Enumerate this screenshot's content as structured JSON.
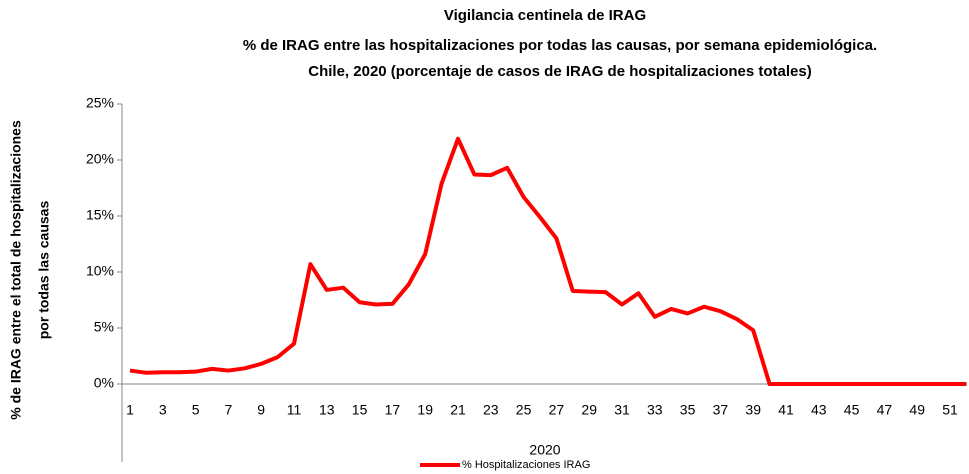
{
  "chart_data": {
    "type": "line",
    "title": "Vigilancia centinela de IRAG",
    "subtitle": [
      "% de IRAG entre las hospitalizaciones por todas las causas, por semana epidemiológica.",
      "Chile, 2020 (porcentaje de casos de IRAG de hospitalizaciones totales)"
    ],
    "ylabel": [
      "% de IRAG entre el total de hospitalizaciones",
      "por todas las causas"
    ],
    "xlabel": "2020",
    "categories": [
      "1",
      null,
      "3",
      null,
      "5",
      null,
      "7",
      null,
      "9",
      null,
      "11",
      null,
      "13",
      null,
      "15",
      null,
      "17",
      null,
      "19",
      null,
      "21",
      null,
      "23",
      null,
      "25",
      null,
      "27",
      null,
      "29",
      null,
      "31",
      null,
      "33",
      null,
      "35",
      null,
      "37",
      null,
      "39",
      null,
      "41",
      null,
      "43",
      null,
      "45",
      null,
      "47",
      null,
      "49",
      null,
      "51",
      null
    ],
    "series": [
      {
        "name": "% Hospitalizaciones IRAG",
        "color": "#ff0000",
        "values": [
          1.2,
          1.0,
          1.05,
          1.05,
          1.1,
          1.35,
          1.2,
          1.4,
          1.8,
          2.4,
          3.6,
          10.7,
          8.4,
          8.6,
          7.3,
          7.1,
          7.15,
          8.9,
          11.6,
          17.9,
          21.9,
          18.7,
          18.65,
          19.3,
          16.7,
          14.9,
          13.0,
          8.3,
          8.25,
          8.2,
          7.1,
          8.1,
          6.0,
          6.7,
          6.3,
          6.9,
          6.5,
          5.8,
          4.8,
          0,
          0,
          0,
          0,
          0,
          0,
          0,
          0,
          0,
          0,
          0,
          0,
          0
        ]
      }
    ],
    "ylim": [
      0,
      25
    ],
    "yticks": [
      {
        "value": 0,
        "label": "0%"
      },
      {
        "value": 5,
        "label": "5%"
      },
      {
        "value": 10,
        "label": "10%"
      },
      {
        "value": 15,
        "label": "15%"
      },
      {
        "value": 20,
        "label": "20%"
      },
      {
        "value": 25,
        "label": "25%"
      }
    ],
    "grid": false,
    "legend": "bottom"
  }
}
